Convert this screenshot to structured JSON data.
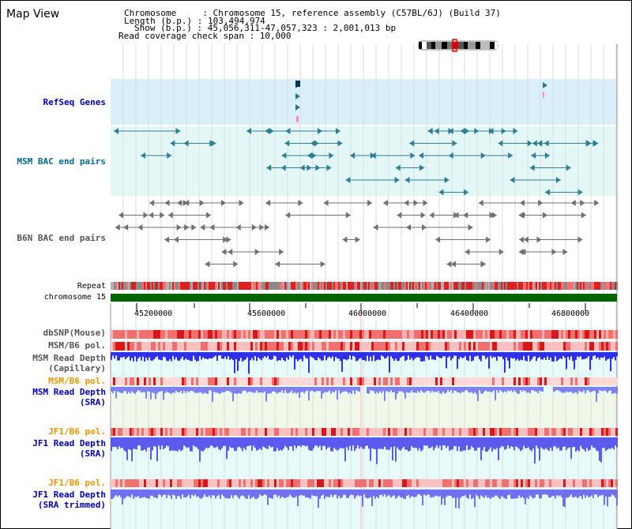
{
  "title": "Map View",
  "info": {
    "chromosome": "Chromosome     : Chromosome 15, reference assembly (C57BL/6J) (Build 37)",
    "length": "Length (b.p.) : 103,494,974",
    "show": "Show (b.p.) : 45,056,311-47,057,323 : 2,001,013 bp",
    "span": "Read coverage check span : 10,000"
  },
  "tracks": {
    "refseq": "RefSeq Genes",
    "msm_bac": "MSM BAC end pairs",
    "b6n_bac": "B6N BAC end pairs",
    "repeat": "Repeat",
    "chrom": "chromosome 15",
    "dbsnp": "dbSNP(Mouse)",
    "msm_pol": "MSM/B6 pol.",
    "msm_depth_cap_1": "MSM Read Depth",
    "msm_depth_cap_2": "(Capillary)",
    "msm_pol_sra": "MSM/B6 pol.",
    "msm_depth_sra_1": "MSM Read Depth",
    "msm_depth_sra_2": "(SRA)",
    "jf1_pol": "JF1/B6 pol.",
    "jf1_depth_1": "JF1 Read Depth",
    "jf1_depth_2": "(SRA)",
    "jf1_pol_trim": "JF1/B6 pol.",
    "jf1_trim_1": "JF1 Read Depth",
    "jf1_trim_2": "(SRA trimmed)"
  },
  "axis_ticks": [
    "45200000",
    "45600000",
    "46000000",
    "46400000",
    "46800000"
  ],
  "colors": {
    "refseq_bg": "#d9effa",
    "msm_bg": "#e3f7f7",
    "label_navy": "#0000b0",
    "label_teal": "#006a8a",
    "label_orange": "#e69500",
    "chrom_green": "#006400",
    "depth_blue": "#3a3aee"
  }
}
